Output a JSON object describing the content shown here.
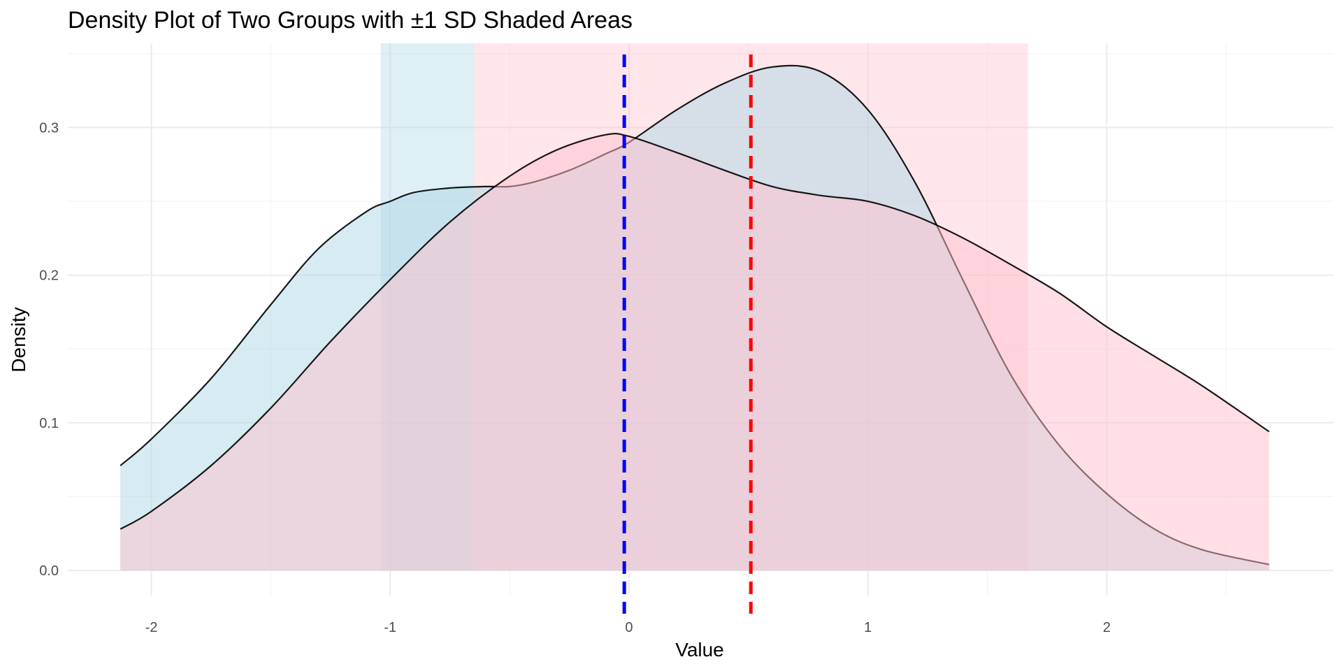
{
  "chart_data": {
    "type": "area",
    "title": "Density Plot of Two Groups with ±1 SD Shaded Areas",
    "xlabel": "Value",
    "ylabel": "Density",
    "xlim": [
      -2.35,
      2.95
    ],
    "ylim": [
      -0.017,
      0.357
    ],
    "x_ticks": [
      {
        "value": -2,
        "label": "-2"
      },
      {
        "value": -1,
        "label": "-1"
      },
      {
        "value": 0,
        "label": "0"
      },
      {
        "value": 1,
        "label": "1"
      },
      {
        "value": 2,
        "label": "2"
      }
    ],
    "y_ticks": [
      {
        "value": 0.0,
        "label": "0.0"
      },
      {
        "value": 0.1,
        "label": "0.1"
      },
      {
        "value": 0.2,
        "label": "0.2"
      },
      {
        "value": 0.3,
        "label": "0.3"
      }
    ],
    "grid": true,
    "series": [
      {
        "fill": "#add8e6",
        "line": "#000000",
        "mean": -0.02,
        "sd_band": [
          -1.04,
          -0.65
        ],
        "x": [
          -2.13,
          -2.0,
          -1.75,
          -1.5,
          -1.3,
          -1.1,
          -1.0,
          -0.9,
          -0.75,
          -0.6,
          -0.5,
          -0.4,
          -0.25,
          -0.1,
          0.0,
          0.2,
          0.4,
          0.6,
          0.8,
          1.0,
          1.2,
          1.4,
          1.6,
          1.8,
          2.0,
          2.2,
          2.4,
          2.68
        ],
        "y": [
          0.071,
          0.089,
          0.13,
          0.18,
          0.218,
          0.243,
          0.25,
          0.256,
          0.259,
          0.26,
          0.26,
          0.263,
          0.271,
          0.282,
          0.29,
          0.312,
          0.33,
          0.341,
          0.338,
          0.312,
          0.262,
          0.196,
          0.132,
          0.085,
          0.052,
          0.028,
          0.014,
          0.004
        ]
      },
      {
        "fill": "#ffc0cb",
        "line": "#000000",
        "mean": 0.51,
        "sd_band": [
          -0.65,
          1.67
        ],
        "x": [
          -2.13,
          -2.0,
          -1.75,
          -1.5,
          -1.25,
          -1.0,
          -0.75,
          -0.5,
          -0.3,
          -0.1,
          0.0,
          0.2,
          0.4,
          0.6,
          0.8,
          1.0,
          1.2,
          1.4,
          1.6,
          1.8,
          2.0,
          2.2,
          2.4,
          2.68
        ],
        "y": [
          0.028,
          0.04,
          0.071,
          0.11,
          0.155,
          0.197,
          0.236,
          0.267,
          0.285,
          0.295,
          0.294,
          0.283,
          0.271,
          0.26,
          0.254,
          0.25,
          0.24,
          0.225,
          0.207,
          0.188,
          0.165,
          0.145,
          0.125,
          0.094
        ]
      }
    ],
    "vlines": [
      {
        "x": -0.02,
        "color": "#0000ff",
        "style": "dashed"
      },
      {
        "x": 0.51,
        "color": "#ff0000",
        "style": "dashed"
      }
    ]
  }
}
